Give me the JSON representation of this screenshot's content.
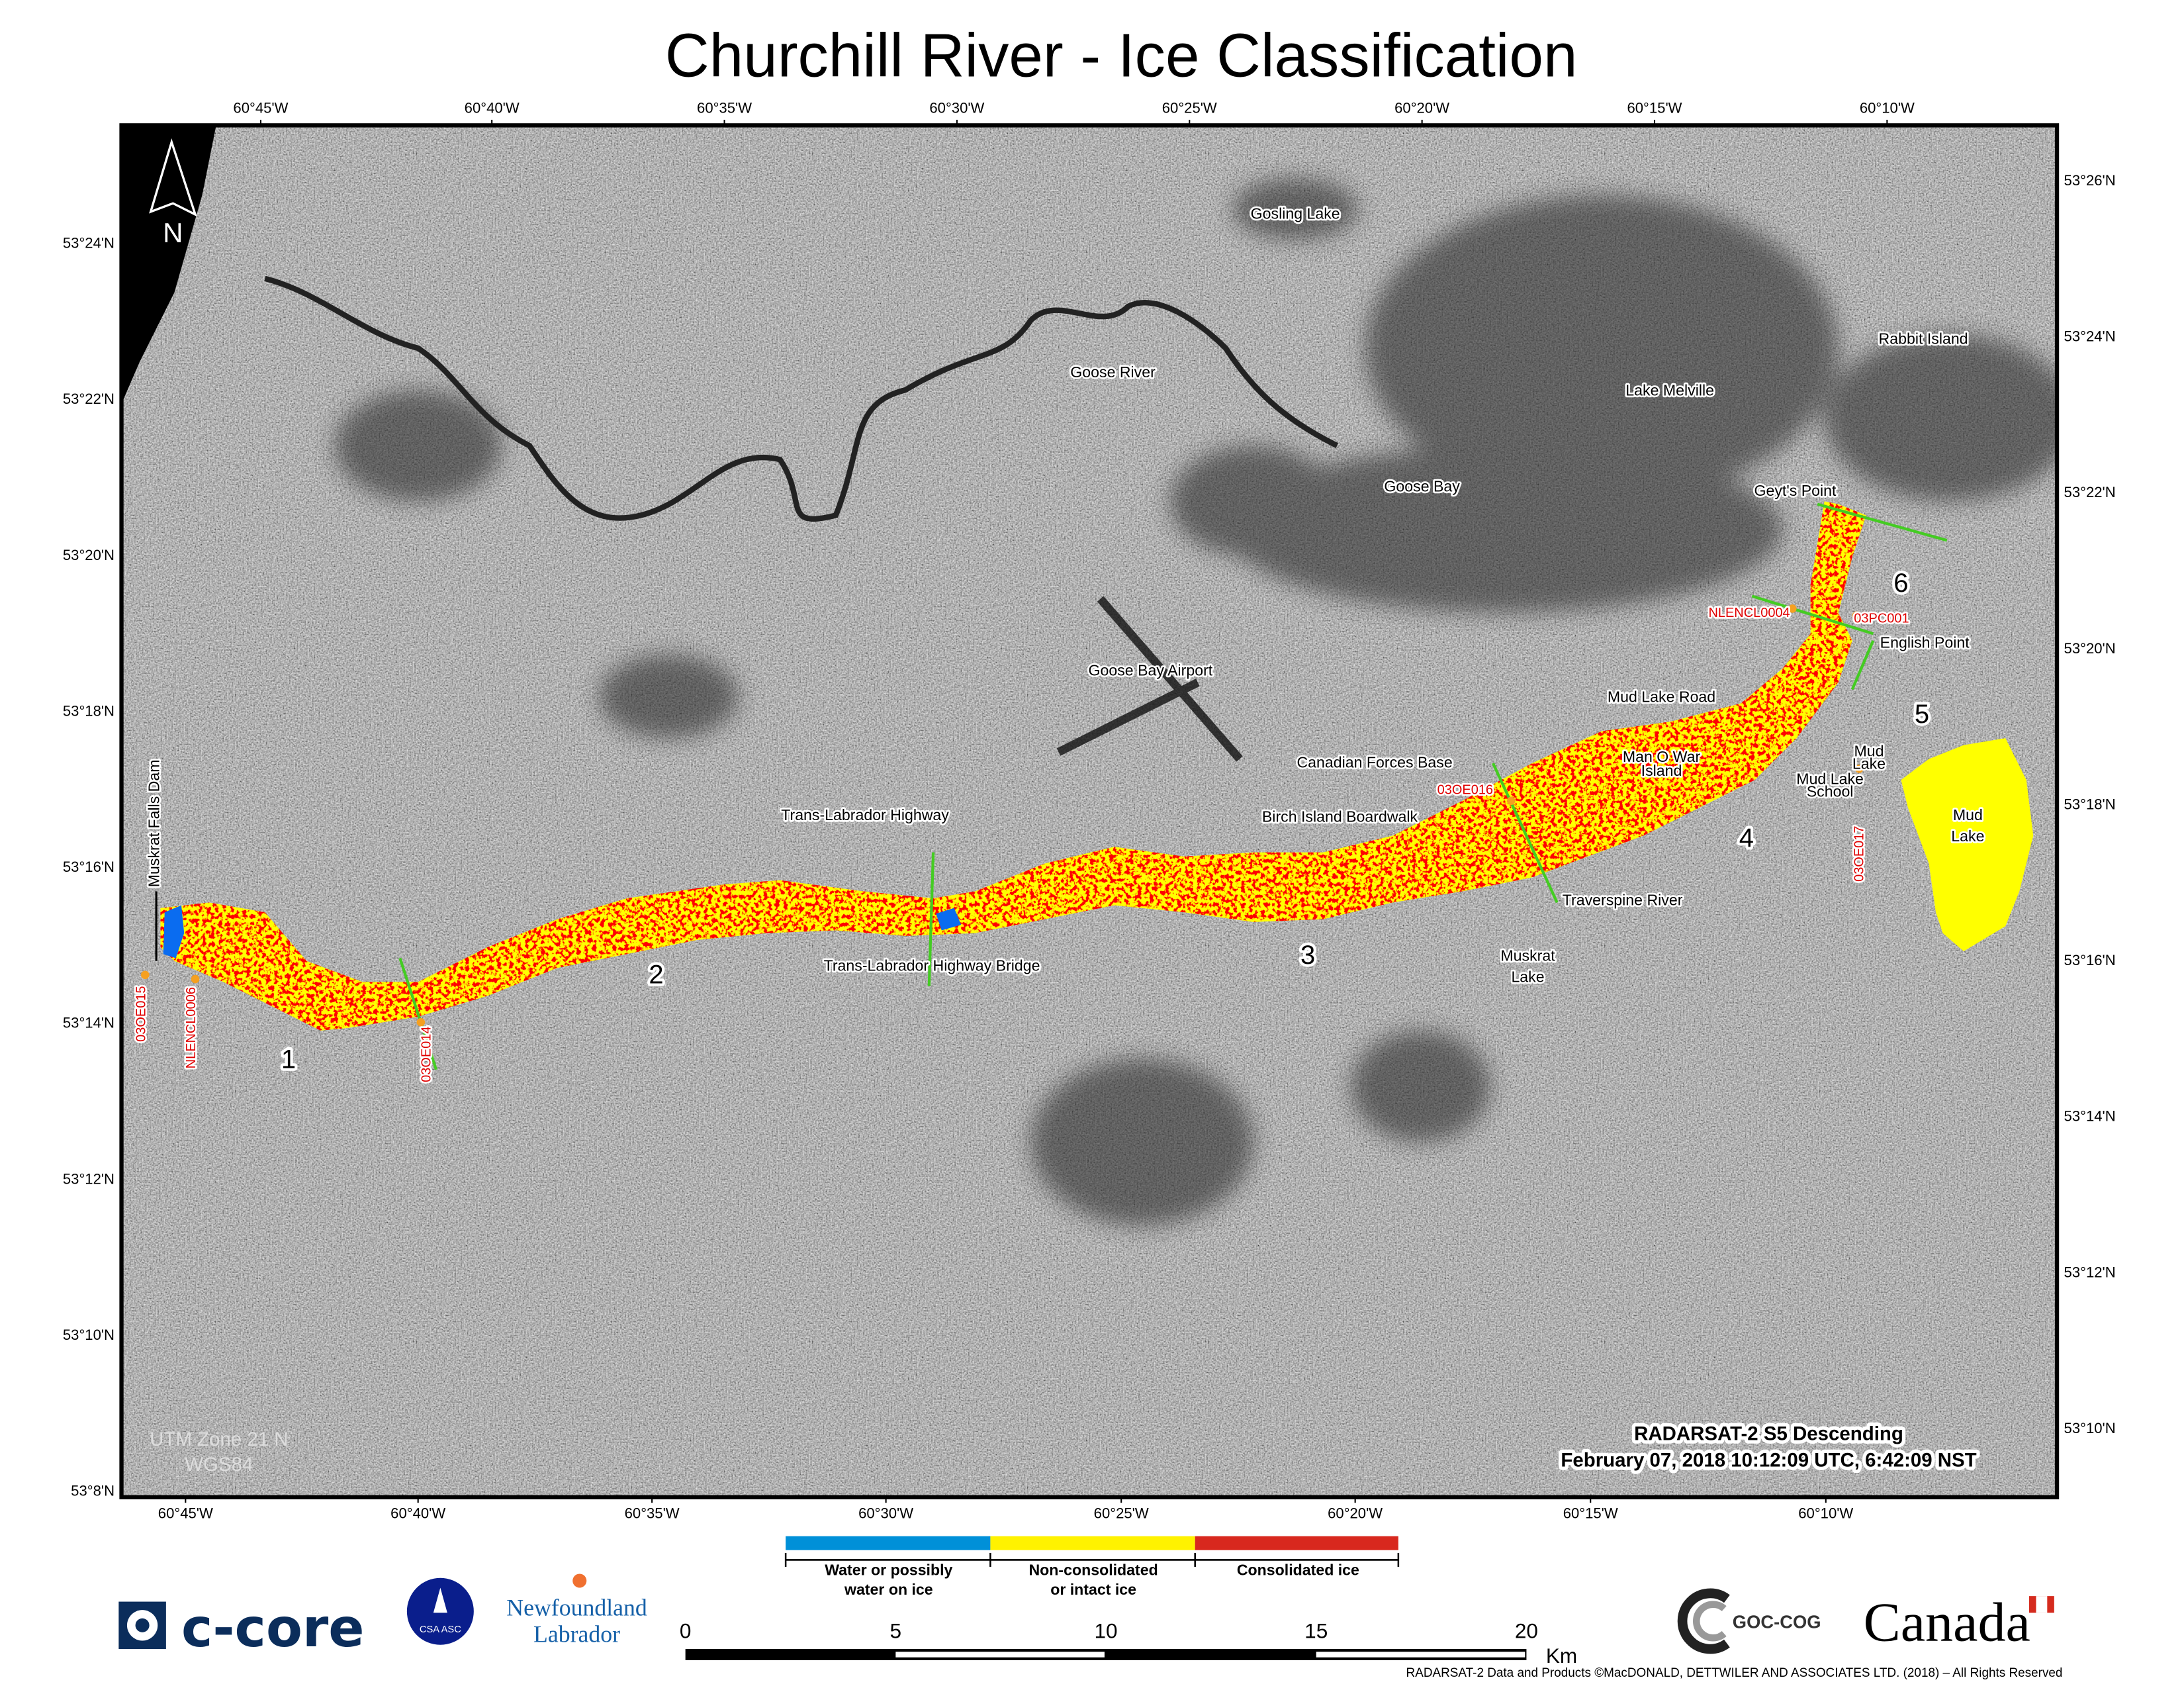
{
  "title": "Churchill River - Ice Classification",
  "lon_labels_top": [
    "60°45'W",
    "60°40'W",
    "60°35'W",
    "60°30'W",
    "60°25'W",
    "60°20'W",
    "60°15'W",
    "60°10'W"
  ],
  "lon_labels_bottom": [
    "60°45'W",
    "60°40'W",
    "60°35'W",
    "60°30'W",
    "60°25'W",
    "60°20'W",
    "60°15'W",
    "60°10'W"
  ],
  "lat_labels_left": [
    "53°24'N",
    "53°22'N",
    "53°20'N",
    "53°18'N",
    "53°16'N",
    "53°14'N",
    "53°12'N",
    "53°10'N",
    "53°8'N"
  ],
  "lat_labels_right": [
    "53°26'N",
    "53°24'N",
    "53°22'N",
    "53°20'N",
    "53°18'N",
    "53°16'N",
    "53°14'N",
    "53°12'N",
    "53°10'N"
  ],
  "north_arrow": "N",
  "places": {
    "gosling_lake": "Gosling Lake",
    "goose_river": "Goose River",
    "rabbit_island": "Rabbit Island",
    "lake_melville": "Lake Melville",
    "goose_bay": "Goose Bay",
    "geyts_point": "Geyt's Point",
    "english_point": "English Point",
    "goose_bay_airport": "Goose Bay Airport",
    "mud_lake_road": "Mud Lake Road",
    "canadian_forces_base": "Canadian Forces Base",
    "man_o_war_island": [
      "Man O War",
      "Island"
    ],
    "mud_lake_small": [
      "Mud",
      "Lake"
    ],
    "mud_lake_school": [
      "Mud Lake",
      "School"
    ],
    "mud_lake": [
      "Mud",
      "Lake"
    ],
    "trans_labrador_highway": "Trans-Labrador Highway",
    "birch_island_boardwalk": "Birch Island Boardwalk",
    "muskrat_falls_dam": "Muskrat Falls Dam",
    "traverspine_river": "Traverspine River",
    "trans_labrador_highway_bridge": "Trans-Labrador Highway Bridge",
    "muskrat_lake": [
      "Muskrat",
      "Lake"
    ]
  },
  "stations": {
    "nlencl0004": "NLENCL0004",
    "03pc001": "03PC001",
    "03oe016": "03OE016",
    "03oe017": "03OE017",
    "03oe015": "03OE015",
    "nlencl0006": "NLENCL0006",
    "03oe014": "03OE014"
  },
  "sections": [
    "1",
    "2",
    "3",
    "4",
    "5",
    "6"
  ],
  "projection": [
    "UTM Zone 21 N",
    "WGS84"
  ],
  "acquisition": [
    "RADARSAT-2 S5 Descending",
    "February 07, 2018 10:12:09 UTC, 6:42:09 NST"
  ],
  "legend": [
    {
      "label": [
        "Water or possibly",
        "water on ice"
      ],
      "color": "#0090d8"
    },
    {
      "label": [
        "Non-consolidated",
        "or intact ice"
      ],
      "color": "#fff200"
    },
    {
      "label": [
        "Consolidated ice"
      ],
      "color": "#d8281e"
    }
  ],
  "map_colors": {
    "water": "#0a6cf0",
    "non_consolidated": "#ffff00",
    "consolidated": "#ff0000",
    "transect": "#44cc22",
    "station": "#f5a020"
  },
  "scale_bar": {
    "ticks": [
      "0",
      "5",
      "10",
      "15",
      "20"
    ],
    "unit": "Km"
  },
  "logos": {
    "ccore": "c-core",
    "csa": "CSA ASC",
    "nl": [
      "Newfoundland",
      "Labrador"
    ],
    "goc": "GOC-COG",
    "canada": "Canada"
  },
  "copyright": "RADARSAT-2 Data and Products ©MacDONALD, DETTWILER AND ASSOCIATES LTD. (2018) – All Rights Reserved"
}
